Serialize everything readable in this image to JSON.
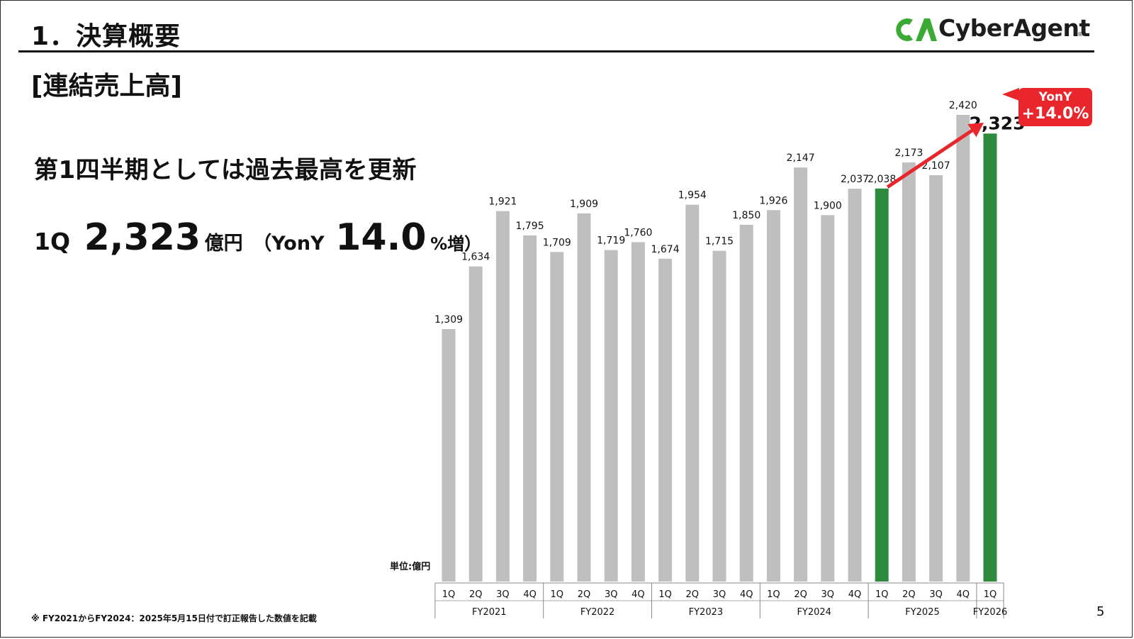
{
  "slide": {
    "title": "1．決算概要",
    "section": "[連結売上高]",
    "headline": "第1四半期としては過去最高を更新",
    "kpi": {
      "quarter": "1Q",
      "value": "2,323",
      "unit": "億円",
      "yony_label": "（YonY",
      "growth": "14.0",
      "growth_suffix": "%増）"
    },
    "logo_text": "CyberAgent",
    "logo_reg": "®",
    "unit_label": "単位:億円",
    "footnote": "※ FY2021からFY2024：2025年5月15日付で訂正報告した数値を記載",
    "page_number": "5",
    "callout": {
      "line1": "YonY",
      "line2": "+14.0%"
    },
    "colors": {
      "bar_default": "#bfbfbf",
      "bar_highlight": "#2e8b3e",
      "arrow": "#e8262b",
      "logo_green": "#3aaa35"
    }
  },
  "chart_data": {
    "type": "bar",
    "ylim": [
      0,
      2600
    ],
    "fiscal_years": [
      {
        "label": "FY2021",
        "quarters": [
          "1Q",
          "2Q",
          "3Q",
          "4Q"
        ]
      },
      {
        "label": "FY2022",
        "quarters": [
          "1Q",
          "2Q",
          "3Q",
          "4Q"
        ]
      },
      {
        "label": "FY2023",
        "quarters": [
          "1Q",
          "2Q",
          "3Q",
          "4Q"
        ]
      },
      {
        "label": "FY2024",
        "quarters": [
          "1Q",
          "2Q",
          "3Q",
          "4Q"
        ]
      },
      {
        "label": "FY2025",
        "quarters": [
          "1Q",
          "2Q",
          "3Q",
          "4Q"
        ]
      },
      {
        "label": "FY2026",
        "quarters": [
          "1Q"
        ]
      }
    ],
    "values": [
      1309,
      1634,
      1921,
      1795,
      1709,
      1909,
      1719,
      1760,
      1674,
      1954,
      1715,
      1850,
      1926,
      2147,
      1900,
      2037,
      2038,
      2173,
      2107,
      2420,
      2323
    ],
    "value_labels": [
      "1,309",
      "1,634",
      "1,921",
      "1,795",
      "1,709",
      "1,909",
      "1,719",
      "1,760",
      "1,674",
      "1,954",
      "1,715",
      "1,850",
      "1,926",
      "2,147",
      "1,900",
      "2,037",
      "2,038",
      "2,173",
      "2,107",
      "2,420",
      "2,323"
    ],
    "highlighted": [
      16,
      20
    ]
  }
}
